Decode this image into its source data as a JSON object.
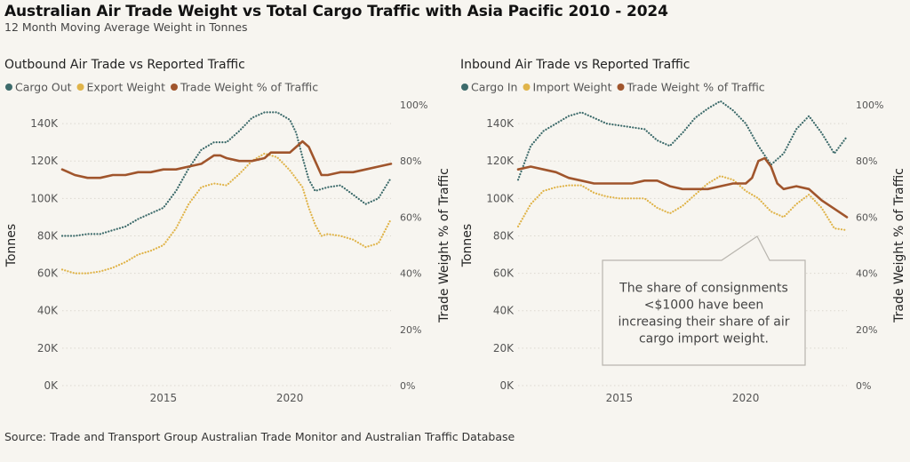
{
  "header": {
    "title": "Australian Air Trade Weight vs Total Cargo Traffic with Asia Pacific 2010 - 2024",
    "subtitle": "12 Month Moving Average Weight in Tonnes"
  },
  "source": "Source: Trade and Transport Group Australian Trade Monitor and Australian Traffic Database",
  "colors": {
    "cargo": "#3d6b6b",
    "trade_weight": "#e0b44a",
    "pct": "#a0552c",
    "grid": "#dcd8cf",
    "background": "#f7f5f0"
  },
  "chart_data": [
    {
      "type": "line",
      "title": "Outbound Air Trade vs Reported Traffic",
      "ylabel": "Tonnes",
      "y2label": "Trade Weight % of Traffic",
      "ylim": [
        0,
        150000
      ],
      "y2lim": [
        0,
        100
      ],
      "xlim": [
        2011.0,
        2024.0
      ],
      "yticks": [
        "0K",
        "20K",
        "40K",
        "60K",
        "80K",
        "100K",
        "120K",
        "140K"
      ],
      "y2ticks": [
        "0%",
        "20%",
        "40%",
        "60%",
        "80%",
        "100%"
      ],
      "xticks": [
        "2015",
        "2020"
      ],
      "legend_position": "top-left",
      "grid": true,
      "series": [
        {
          "name": "Cargo Out",
          "axis": "left",
          "style": "dotted",
          "x": [
            2011.0,
            2011.5,
            2012.0,
            2012.5,
            2013.0,
            2013.5,
            2014.0,
            2014.5,
            2015.0,
            2015.5,
            2016.0,
            2016.5,
            2017.0,
            2017.5,
            2018.0,
            2018.5,
            2019.0,
            2019.5,
            2020.0,
            2020.25,
            2020.5,
            2020.75,
            2021.0,
            2021.5,
            2022.0,
            2022.5,
            2023.0,
            2023.5,
            2024.0
          ],
          "values": [
            80000,
            80000,
            81000,
            81000,
            83000,
            85000,
            89000,
            92000,
            95000,
            104000,
            116000,
            126000,
            130000,
            130000,
            136000,
            143000,
            146000,
            146000,
            142000,
            135000,
            122000,
            110000,
            104000,
            106000,
            107000,
            102000,
            97000,
            100000,
            111000
          ]
        },
        {
          "name": "Export Weight",
          "axis": "left",
          "style": "dotted",
          "x": [
            2011.0,
            2011.5,
            2012.0,
            2012.5,
            2013.0,
            2013.5,
            2014.0,
            2014.5,
            2015.0,
            2015.5,
            2016.0,
            2016.5,
            2017.0,
            2017.5,
            2018.0,
            2018.5,
            2019.0,
            2019.5,
            2020.0,
            2020.5,
            2020.75,
            2021.0,
            2021.25,
            2021.5,
            2022.0,
            2022.5,
            2023.0,
            2023.5,
            2024.0
          ],
          "values": [
            62000,
            60000,
            60000,
            61000,
            63000,
            66000,
            70000,
            72000,
            75000,
            84000,
            97000,
            106000,
            108000,
            107000,
            113000,
            120000,
            124000,
            122000,
            115000,
            106000,
            95000,
            86000,
            80000,
            81000,
            80000,
            78000,
            74000,
            76000,
            89000
          ]
        },
        {
          "name": "Trade Weight % of Traffic",
          "axis": "right",
          "style": "solid",
          "x": [
            2011.0,
            2011.25,
            2011.5,
            2012.0,
            2012.5,
            2013.0,
            2013.5,
            2014.0,
            2014.5,
            2015.0,
            2015.5,
            2016.0,
            2016.5,
            2017.0,
            2017.25,
            2017.5,
            2018.0,
            2018.5,
            2019.0,
            2019.25,
            2019.5,
            2020.0,
            2020.25,
            2020.5,
            2020.75,
            2021.0,
            2021.25,
            2021.5,
            2022.0,
            2022.5,
            2023.0,
            2023.5,
            2024.0
          ],
          "values": [
            77,
            76,
            75,
            74,
            74,
            75,
            75,
            76,
            76,
            77,
            77,
            78,
            79,
            82,
            82,
            81,
            80,
            80,
            81,
            83,
            83,
            83,
            85,
            87,
            85,
            80,
            75,
            75,
            76,
            76,
            77,
            78,
            79
          ]
        }
      ]
    },
    {
      "type": "line",
      "title": "Inbound Air Trade vs Reported Traffic",
      "ylabel": "Tonnes",
      "y2label": "Trade Weight % of Traffic",
      "ylim": [
        0,
        150000
      ],
      "y2lim": [
        0,
        100
      ],
      "xlim": [
        2011.0,
        2024.0
      ],
      "yticks": [
        "0K",
        "20K",
        "40K",
        "60K",
        "80K",
        "100K",
        "120K",
        "140K"
      ],
      "y2ticks": [
        "0%",
        "20%",
        "40%",
        "60%",
        "80%",
        "100%"
      ],
      "xticks": [
        "2015",
        "2020"
      ],
      "legend_position": "top-left",
      "grid": true,
      "annotation": "The share of consignments <$1000 have been increasing their share of air cargo import weight.",
      "series": [
        {
          "name": "Cargo In",
          "axis": "left",
          "style": "dotted",
          "x": [
            2011.0,
            2011.5,
            2012.0,
            2012.5,
            2013.0,
            2013.5,
            2014.0,
            2014.5,
            2015.0,
            2015.5,
            2016.0,
            2016.5,
            2017.0,
            2017.5,
            2018.0,
            2018.5,
            2019.0,
            2019.5,
            2020.0,
            2020.5,
            2021.0,
            2021.5,
            2022.0,
            2022.5,
            2023.0,
            2023.5,
            2024.0
          ],
          "values": [
            110000,
            128000,
            136000,
            140000,
            144000,
            146000,
            143000,
            140000,
            139000,
            138000,
            137000,
            131000,
            128000,
            135000,
            143000,
            148000,
            152000,
            147000,
            140000,
            128000,
            118000,
            124000,
            137000,
            144000,
            135000,
            124000,
            133000
          ]
        },
        {
          "name": "Import Weight",
          "axis": "left",
          "style": "dotted",
          "x": [
            2011.0,
            2011.5,
            2012.0,
            2012.5,
            2013.0,
            2013.5,
            2014.0,
            2014.5,
            2015.0,
            2015.5,
            2016.0,
            2016.5,
            2017.0,
            2017.5,
            2018.0,
            2018.5,
            2019.0,
            2019.5,
            2020.0,
            2020.5,
            2021.0,
            2021.5,
            2022.0,
            2022.5,
            2023.0,
            2023.5,
            2024.0
          ],
          "values": [
            85000,
            97000,
            104000,
            106000,
            107000,
            107000,
            103000,
            101000,
            100000,
            100000,
            100000,
            95000,
            92000,
            96000,
            102000,
            108000,
            112000,
            110000,
            104000,
            100000,
            93000,
            90000,
            97000,
            102000,
            95000,
            84000,
            83000
          ]
        },
        {
          "name": "Trade Weight % of Traffic",
          "axis": "right",
          "style": "solid",
          "x": [
            2011.0,
            2011.5,
            2012.0,
            2012.5,
            2013.0,
            2013.5,
            2014.0,
            2014.5,
            2015.0,
            2015.5,
            2016.0,
            2016.5,
            2017.0,
            2017.5,
            2018.0,
            2018.5,
            2019.0,
            2019.5,
            2020.0,
            2020.25,
            2020.5,
            2020.75,
            2021.0,
            2021.25,
            2021.5,
            2022.0,
            2022.5,
            2023.0,
            2023.5,
            2024.0
          ],
          "values": [
            77,
            78,
            77,
            76,
            74,
            73,
            72,
            72,
            72,
            72,
            73,
            73,
            71,
            70,
            70,
            70,
            71,
            72,
            72,
            74,
            80,
            81,
            78,
            72,
            70,
            71,
            70,
            66,
            63,
            60
          ]
        }
      ]
    }
  ]
}
